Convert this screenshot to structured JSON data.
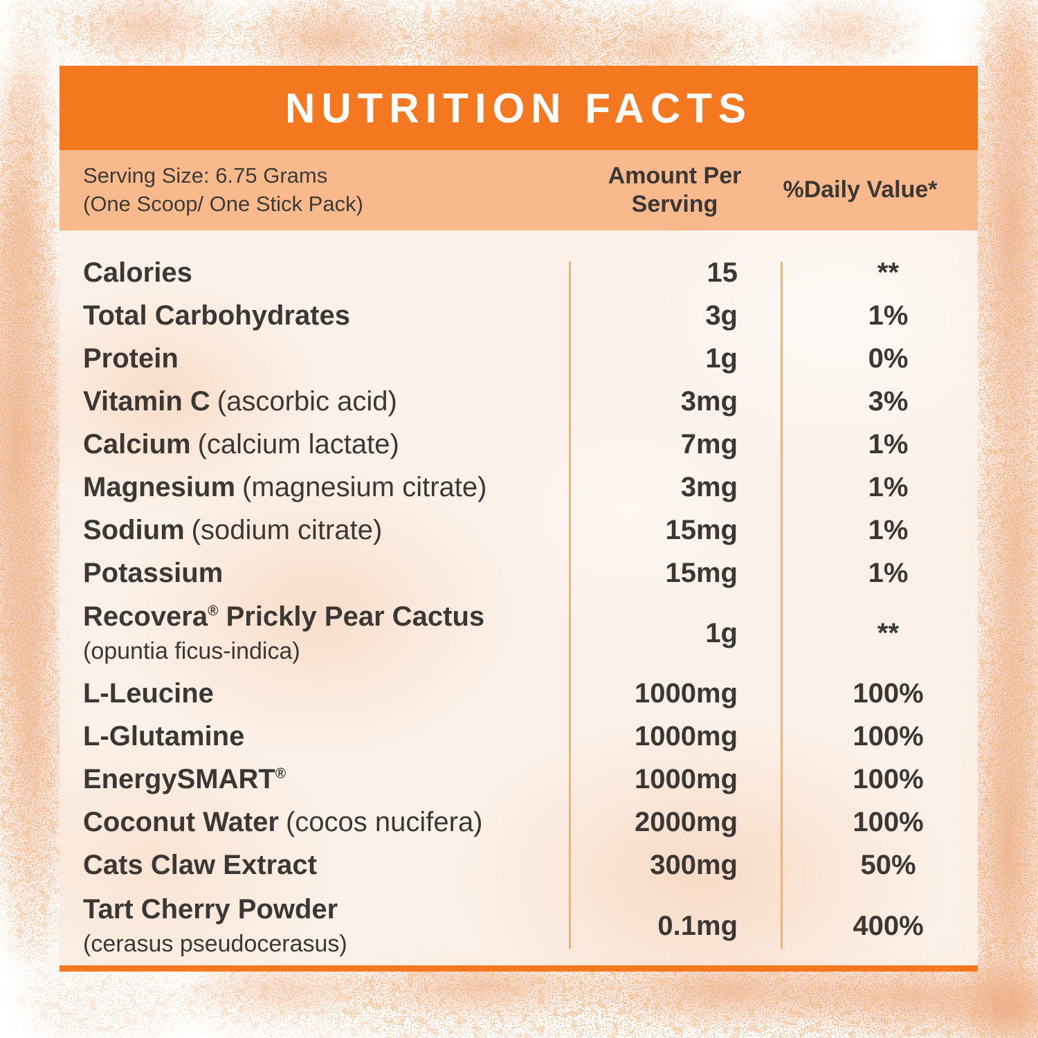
{
  "label": {
    "title": "NUTRITION FACTS",
    "serving": {
      "line1": "Serving Size: 6.75 Grams",
      "line2": "(One Scoop/ One Stick Pack)"
    },
    "columns": {
      "amount": "Amount Per Serving",
      "daily_value": "%Daily Value*"
    },
    "rows": [
      {
        "name": "Calories",
        "detail": "",
        "amount": "15",
        "dv": "**"
      },
      {
        "name": "Total Carbohydrates",
        "detail": "",
        "amount": "3g",
        "dv": "1%"
      },
      {
        "name": "Protein",
        "detail": "",
        "amount": "1g",
        "dv": "0%"
      },
      {
        "name": "Vitamin C",
        "detail": "(ascorbic acid)",
        "amount": "3mg",
        "dv": "3%"
      },
      {
        "name": "Calcium",
        "detail": "(calcium lactate)",
        "amount": "7mg",
        "dv": "1%"
      },
      {
        "name": "Magnesium",
        "detail": "(magnesium citrate)",
        "amount": "3mg",
        "dv": "1%"
      },
      {
        "name": "Sodium",
        "detail": "(sodium citrate)",
        "amount": "15mg",
        "dv": "1%"
      },
      {
        "name": "Potassium",
        "detail": "",
        "amount": "15mg",
        "dv": "1%"
      },
      {
        "name": "Recovera® Prickly Pear Cactus",
        "detail": "(opuntia ficus-indica)",
        "amount": "1g",
        "dv": "**"
      },
      {
        "name": "L-Leucine",
        "detail": "",
        "amount": "1000mg",
        "dv": "100%"
      },
      {
        "name": "L-Glutamine",
        "detail": "",
        "amount": "1000mg",
        "dv": "100%"
      },
      {
        "name": "EnergySMART®",
        "detail": "",
        "amount": "1000mg",
        "dv": "100%"
      },
      {
        "name": "Coconut Water",
        "detail": "(cocos nucifera)",
        "amount": "2000mg",
        "dv": "100%"
      },
      {
        "name": "Cats Claw Extract",
        "detail": "",
        "amount": "300mg",
        "dv": "50%"
      },
      {
        "name": "Tart Cherry Powder",
        "detail": "(cerasus pseudocerasus)",
        "amount": "0.1mg",
        "dv": "400%"
      }
    ],
    "colors": {
      "header_orange": "#F4781F",
      "subheader_peach": "#F8B98C",
      "table_background": "#FBF0E7",
      "divider": "#EFB37C",
      "text": "#3B3734",
      "title_text": "#FFFFFF",
      "powder_orange": "#DE7337"
    }
  }
}
